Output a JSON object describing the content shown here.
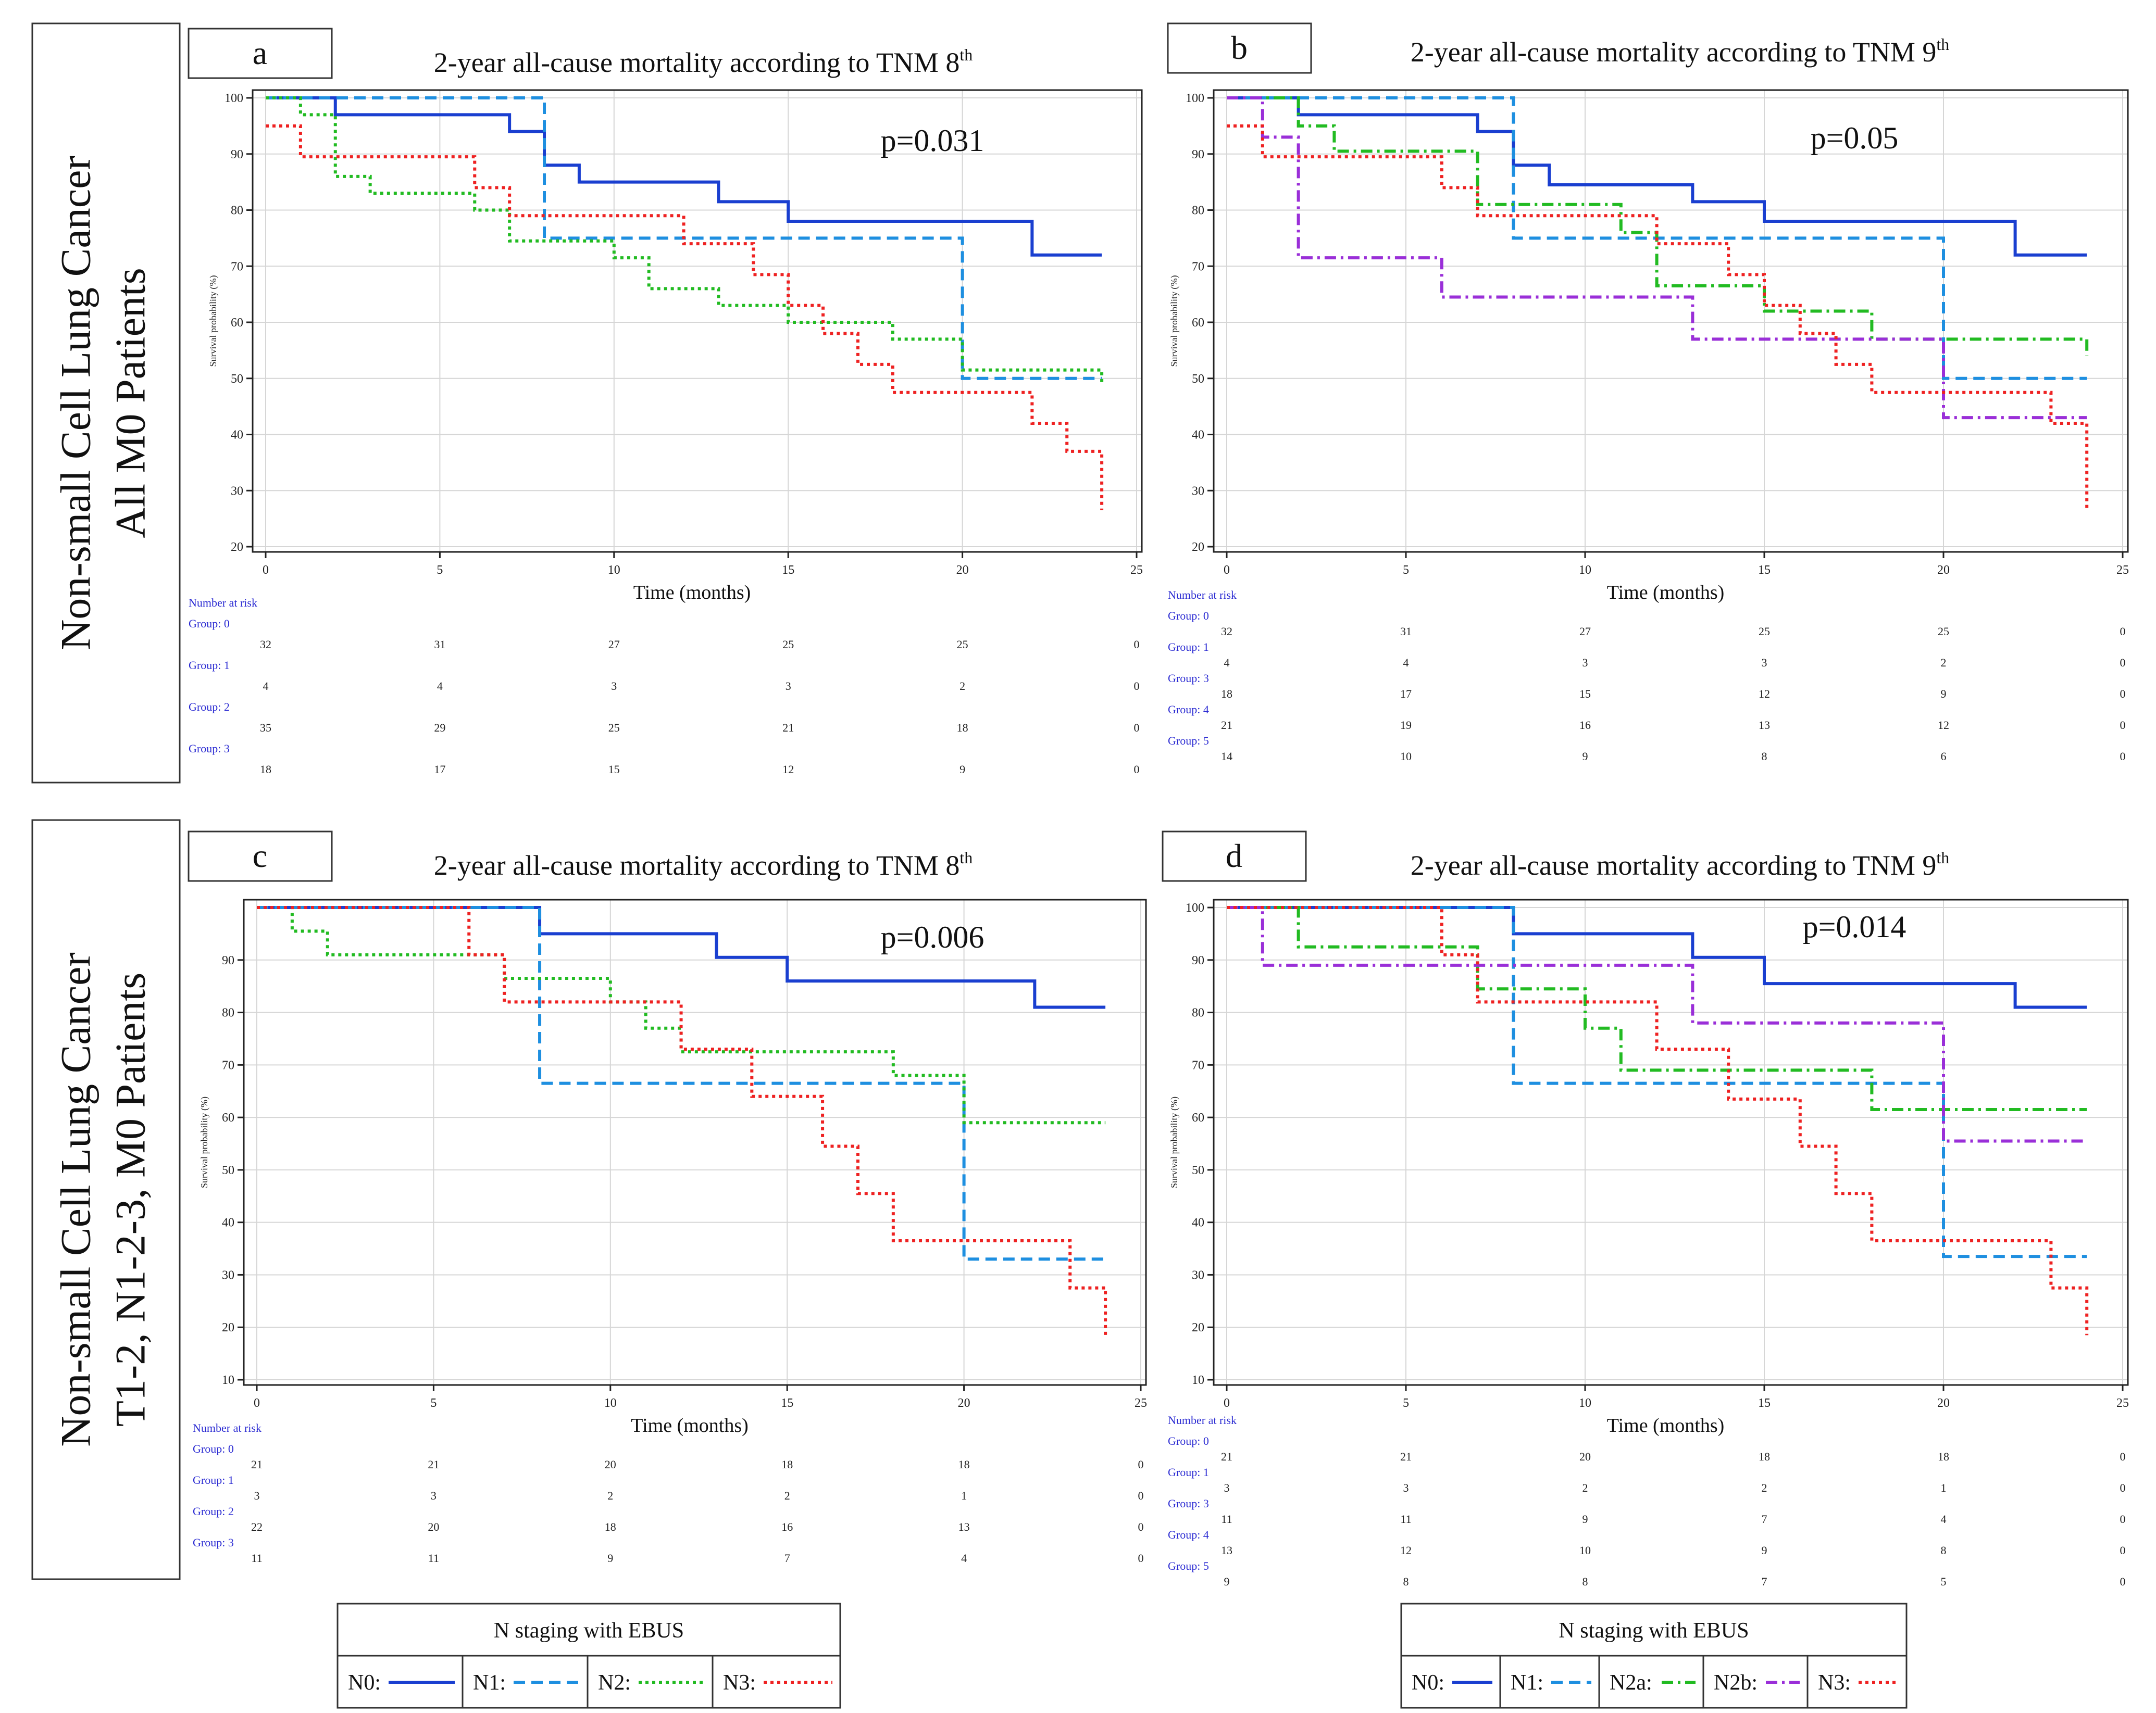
{
  "row_labels": [
    {
      "line1": "Non-small Cell Lung Cancer",
      "line2": "All M0 Patients"
    },
    {
      "line1": "Non-small Cell Lung Cancer",
      "line2": "T1-2, N1-2-3, M0 Patients"
    }
  ],
  "styles": {
    "N0": {
      "color": "#1a3fd0",
      "dash": ""
    },
    "N1": {
      "color": "#1e8fe0",
      "dash": "22,12"
    },
    "N2": {
      "color": "#22bb22",
      "dash": "6,7"
    },
    "N2a": {
      "color": "#22bb22",
      "dash": "22,9,5,9"
    },
    "N2b": {
      "color": "#9a2fd8",
      "dash": "22,9,5,9"
    },
    "N3": {
      "color": "#ee2222",
      "dash": "6,7"
    }
  },
  "legends": [
    {
      "title": "N staging with EBUS",
      "items": [
        {
          "key": "N0",
          "label": "N0:"
        },
        {
          "key": "N1",
          "label": "N1:"
        },
        {
          "key": "N2",
          "label": "N2:"
        },
        {
          "key": "N3",
          "label": "N3:"
        }
      ]
    },
    {
      "title": "N staging with EBUS",
      "items": [
        {
          "key": "N0",
          "label": "N0:"
        },
        {
          "key": "N1",
          "label": "N1:"
        },
        {
          "key": "N2a",
          "label": "N2a:"
        },
        {
          "key": "N2b",
          "label": "N2b:"
        },
        {
          "key": "N3",
          "label": "N3:"
        }
      ]
    }
  ],
  "chart_data": [
    {
      "panel": "a",
      "type": "line",
      "title": "2-year all-cause mortality according to TNM 8",
      "title_sup": "th",
      "p_value": "p=0.031",
      "xlabel": "Time (months)",
      "ylabel": "Survival probability (%)",
      "xlim": [
        0,
        25
      ],
      "ylim": [
        20,
        100
      ],
      "xticks": [
        "0",
        "5",
        "10",
        "15",
        "20",
        "25"
      ],
      "yticks": [
        "20",
        "30",
        "40",
        "50",
        "60",
        "70",
        "80",
        "90",
        "100"
      ],
      "series": [
        {
          "name": "N0",
          "x": [
            0,
            2,
            7,
            8,
            9,
            13,
            15,
            22,
            24
          ],
          "y": [
            100,
            97,
            94,
            88,
            85,
            81.5,
            78,
            72,
            72
          ]
        },
        {
          "name": "N1",
          "x": [
            0,
            8,
            20,
            24
          ],
          "y": [
            100,
            75,
            50,
            50
          ]
        },
        {
          "name": "N2",
          "x": [
            0,
            1,
            2,
            3,
            6,
            7,
            10,
            11,
            13,
            15,
            18,
            20,
            24
          ],
          "y": [
            100,
            97,
            86,
            83,
            80,
            74.5,
            71.5,
            66,
            63,
            60,
            57,
            51.5,
            49
          ]
        },
        {
          "name": "N3",
          "x": [
            0,
            1,
            2,
            6,
            7,
            12,
            14,
            15,
            16,
            17,
            18,
            22,
            23,
            24
          ],
          "y": [
            95,
            89.5,
            89.5,
            84,
            79,
            74,
            68.5,
            63,
            58,
            52.5,
            47.5,
            42,
            37,
            26.5
          ]
        }
      ],
      "risk_table": {
        "header": "Number at risk",
        "groups": [
          {
            "label": "Group: 0",
            "values": [
              "32",
              "31",
              "27",
              "25",
              "25",
              "0"
            ]
          },
          {
            "label": "Group: 1",
            "values": [
              "4",
              "4",
              "3",
              "3",
              "2",
              "0"
            ]
          },
          {
            "label": "Group: 2",
            "values": [
              "35",
              "29",
              "25",
              "21",
              "18",
              "0"
            ]
          },
          {
            "label": "Group: 3",
            "values": [
              "18",
              "17",
              "15",
              "12",
              "9",
              "0"
            ]
          }
        ]
      }
    },
    {
      "panel": "b",
      "type": "line",
      "title": "2-year all-cause mortality according to TNM 9",
      "title_sup": "th",
      "p_value": "p=0.05",
      "xlabel": "Time (months)",
      "ylabel": "Survival probability (%)",
      "xlim": [
        0,
        25
      ],
      "ylim": [
        20,
        100
      ],
      "xticks": [
        "0",
        "5",
        "10",
        "15",
        "20",
        "25"
      ],
      "yticks": [
        "20",
        "30",
        "40",
        "50",
        "60",
        "70",
        "80",
        "90",
        "100"
      ],
      "series": [
        {
          "name": "N0",
          "x": [
            0,
            2,
            7,
            8,
            9,
            13,
            15,
            22,
            24
          ],
          "y": [
            100,
            97,
            94,
            88,
            84.5,
            81.5,
            78,
            72,
            72
          ]
        },
        {
          "name": "N1",
          "x": [
            0,
            8,
            20,
            24
          ],
          "y": [
            100,
            75,
            50,
            50
          ]
        },
        {
          "name": "N2a",
          "x": [
            0,
            2,
            3,
            7,
            11,
            12,
            15,
            18,
            24
          ],
          "y": [
            100,
            95,
            90.5,
            81,
            76,
            66.5,
            62,
            57,
            54
          ]
        },
        {
          "name": "N2b",
          "x": [
            0,
            1,
            2,
            6,
            13,
            20,
            24
          ],
          "y": [
            100,
            93,
            71.5,
            64.5,
            57,
            43,
            43
          ]
        },
        {
          "name": "N3",
          "x": [
            0,
            1,
            6,
            7,
            12,
            14,
            15,
            16,
            17,
            18,
            23,
            24
          ],
          "y": [
            95,
            89.5,
            84,
            79,
            74,
            68.5,
            63,
            58,
            52.5,
            47.5,
            42,
            26.5
          ]
        }
      ],
      "risk_table": {
        "header": "Number at risk",
        "groups": [
          {
            "label": "Group: 0",
            "values": [
              "32",
              "31",
              "27",
              "25",
              "25",
              "0"
            ]
          },
          {
            "label": "Group: 1",
            "values": [
              "4",
              "4",
              "3",
              "3",
              "2",
              "0"
            ]
          },
          {
            "label": "Group: 3",
            "values": [
              "18",
              "17",
              "15",
              "12",
              "9",
              "0"
            ]
          },
          {
            "label": "Group: 4",
            "values": [
              "21",
              "19",
              "16",
              "13",
              "12",
              "0"
            ]
          },
          {
            "label": "Group: 5",
            "values": [
              "14",
              "10",
              "9",
              "8",
              "6",
              "0"
            ]
          }
        ]
      }
    },
    {
      "panel": "c",
      "type": "line",
      "title": "2-year all-cause mortality according to TNM 8",
      "title_sup": "th",
      "p_value": "p=0.006",
      "xlabel": "Time (months)",
      "ylabel": "Survival probability (%)",
      "xlim": [
        0,
        25
      ],
      "ylim": [
        10,
        100
      ],
      "xticks": [
        "0",
        "5",
        "10",
        "15",
        "20",
        "25"
      ],
      "yticks": [
        "10",
        "20",
        "30",
        "40",
        "50",
        "60",
        "70",
        "80",
        "90"
      ],
      "series": [
        {
          "name": "N0",
          "x": [
            0,
            8,
            13,
            15,
            22,
            24
          ],
          "y": [
            100,
            95,
            90.5,
            86,
            81,
            81
          ]
        },
        {
          "name": "N1",
          "x": [
            0,
            8,
            20,
            24
          ],
          "y": [
            100,
            66.5,
            33,
            33
          ]
        },
        {
          "name": "N2",
          "x": [
            0,
            1,
            2,
            7,
            10,
            11,
            12,
            13,
            18,
            20,
            24
          ],
          "y": [
            100,
            95.5,
            91,
            86.5,
            82,
            77,
            72.5,
            72.5,
            68,
            59,
            59
          ]
        },
        {
          "name": "N3",
          "x": [
            0,
            6,
            7,
            12,
            14,
            16,
            17,
            18,
            23,
            24
          ],
          "y": [
            100,
            91,
            82,
            73,
            64,
            54.5,
            45.5,
            36.5,
            27.5,
            18.5
          ]
        }
      ],
      "risk_table": {
        "header": "Number at risk",
        "groups": [
          {
            "label": "Group: 0",
            "values": [
              "21",
              "21",
              "20",
              "18",
              "18",
              "0"
            ]
          },
          {
            "label": "Group: 1",
            "values": [
              "3",
              "3",
              "2",
              "2",
              "1",
              "0"
            ]
          },
          {
            "label": "Group: 2",
            "values": [
              "22",
              "20",
              "18",
              "16",
              "13",
              "0"
            ]
          },
          {
            "label": "Group: 3",
            "values": [
              "11",
              "11",
              "9",
              "7",
              "4",
              "0"
            ]
          }
        ]
      }
    },
    {
      "panel": "d",
      "type": "line",
      "title": "2-year all-cause mortality according to TNM 9",
      "title_sup": "th",
      "p_value": "p=0.014",
      "xlabel": "Time (months)",
      "ylabel": "Survival probability (%)",
      "xlim": [
        0,
        25
      ],
      "ylim": [
        10,
        100
      ],
      "xticks": [
        "0",
        "5",
        "10",
        "15",
        "20",
        "25"
      ],
      "yticks": [
        "10",
        "20",
        "30",
        "40",
        "50",
        "60",
        "70",
        "80",
        "90",
        "100"
      ],
      "series": [
        {
          "name": "N0",
          "x": [
            0,
            8,
            13,
            15,
            22,
            24
          ],
          "y": [
            100,
            95,
            90.5,
            85.5,
            81,
            81
          ]
        },
        {
          "name": "N1",
          "x": [
            0,
            8,
            20,
            24
          ],
          "y": [
            100,
            66.5,
            33.5,
            33.5
          ]
        },
        {
          "name": "N2a",
          "x": [
            0,
            2,
            7,
            10,
            11,
            18,
            24
          ],
          "y": [
            100,
            92.5,
            84.5,
            77,
            69,
            61.5,
            61.5
          ]
        },
        {
          "name": "N2b",
          "x": [
            0,
            1,
            13,
            20,
            24
          ],
          "y": [
            100,
            89,
            78,
            55.5,
            55.5
          ]
        },
        {
          "name": "N3",
          "x": [
            0,
            6,
            7,
            12,
            14,
            16,
            17,
            18,
            23,
            24
          ],
          "y": [
            100,
            91,
            82,
            73,
            63.5,
            54.5,
            45.5,
            36.5,
            27.5,
            18.5
          ]
        }
      ],
      "risk_table": {
        "header": "Number at risk",
        "groups": [
          {
            "label": "Group: 0",
            "values": [
              "21",
              "21",
              "20",
              "18",
              "18",
              "0"
            ]
          },
          {
            "label": "Group: 1",
            "values": [
              "3",
              "3",
              "2",
              "2",
              "1",
              "0"
            ]
          },
          {
            "label": "Group: 3",
            "values": [
              "11",
              "11",
              "9",
              "7",
              "4",
              "0"
            ]
          },
          {
            "label": "Group: 4",
            "values": [
              "13",
              "12",
              "10",
              "9",
              "8",
              "0"
            ]
          },
          {
            "label": "Group: 5",
            "values": [
              "9",
              "8",
              "8",
              "7",
              "5",
              "0"
            ]
          }
        ]
      }
    }
  ]
}
